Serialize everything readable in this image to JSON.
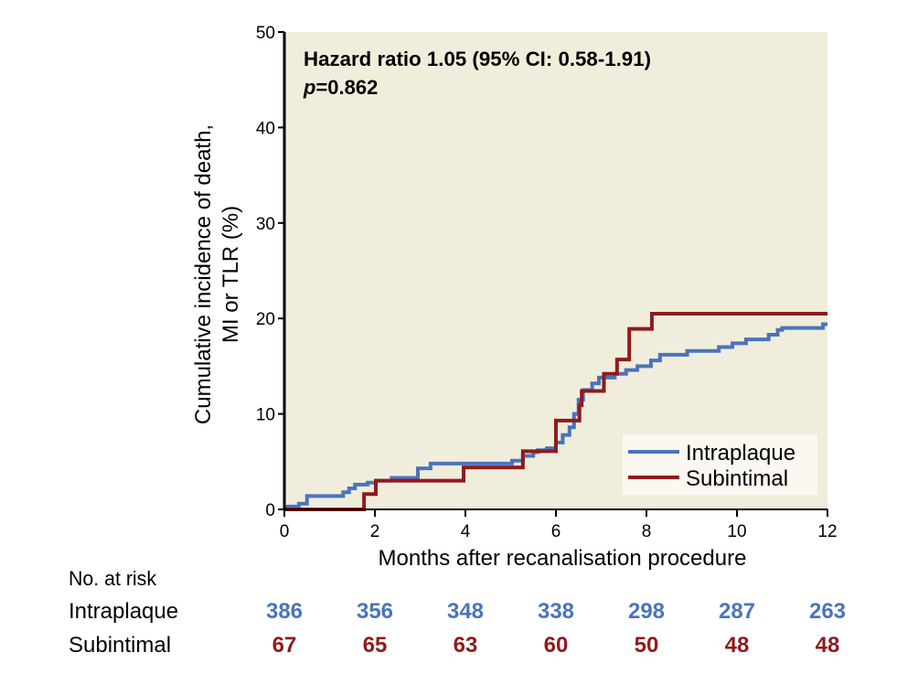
{
  "chart_data": {
    "type": "line",
    "step": true,
    "xlabel": "Months after recanalisation procedure",
    "ylabel_lines": [
      "Cumulative incidence of death,",
      "MI or TLR (%)"
    ],
    "xlim": [
      0,
      12
    ],
    "ylim": [
      0,
      50
    ],
    "x_ticks": [
      0,
      2,
      4,
      6,
      8,
      10,
      12
    ],
    "y_ticks": [
      0,
      10,
      20,
      30,
      40,
      50
    ],
    "grid": false,
    "legend_placement": "bottom-right",
    "annotation": {
      "line1": "Hazard ratio 1.05 (95% CI: 0.58-1.91)",
      "p_label": "p",
      "p_value": "=0.862"
    },
    "series": [
      {
        "name": "Intraplaque",
        "color": "#4a74bb",
        "x": [
          0,
          0.32,
          0.5,
          1.3,
          1.43,
          1.56,
          1.84,
          2.02,
          2.37,
          2.95,
          3.23,
          5.03,
          5.27,
          5.5,
          5.6,
          5.8,
          6.0,
          6.15,
          6.3,
          6.4,
          6.5,
          6.6,
          6.8,
          6.95,
          7.3,
          7.55,
          7.8,
          8.1,
          8.3,
          8.9,
          9.6,
          9.9,
          10.2,
          10.7,
          10.9,
          11.0,
          11.9,
          12
        ],
        "y": [
          0.3,
          0.6,
          1.4,
          1.8,
          2.2,
          2.6,
          2.8,
          3.0,
          3.3,
          4.3,
          4.8,
          5.1,
          5.6,
          6.0,
          6.2,
          6.4,
          7.0,
          7.8,
          8.6,
          10.0,
          11.5,
          12.5,
          13.2,
          13.8,
          14.2,
          14.6,
          15.0,
          15.6,
          16.2,
          16.6,
          17.0,
          17.4,
          17.8,
          18.3,
          18.8,
          19.0,
          19.4,
          19.4
        ]
      },
      {
        "name": "Subintimal",
        "color": "#8e1b1d",
        "x": [
          0,
          1.76,
          2.02,
          3.96,
          5.27,
          6.0,
          6.52,
          6.57,
          7.06,
          7.35,
          7.62,
          8.12,
          12
        ],
        "y": [
          0,
          1.6,
          3.0,
          4.4,
          6.1,
          9.3,
          10.9,
          12.4,
          14.2,
          15.7,
          18.9,
          20.5,
          20.5
        ]
      }
    ],
    "risk_table": {
      "title": "No. at risk",
      "rows": [
        {
          "label": "Intraplaque",
          "color": "#4a74bb",
          "values": [
            "386",
            "356",
            "348",
            "338",
            "298",
            "287",
            "263"
          ]
        },
        {
          "label": "Subintimal",
          "color": "#8e1b1d",
          "values": [
            "67",
            "65",
            "63",
            "60",
            "50",
            "48",
            "48"
          ]
        }
      ]
    },
    "plot_background": "#f1eddc"
  }
}
